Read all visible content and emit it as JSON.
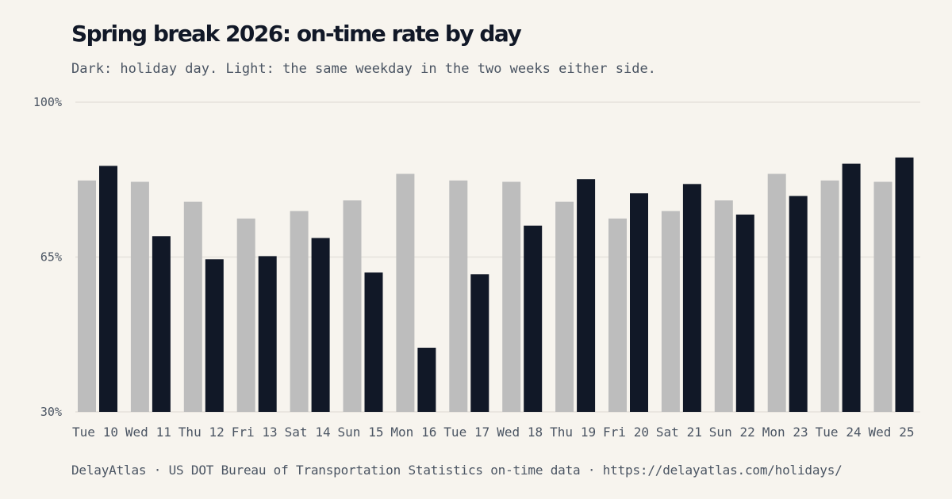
{
  "title": "Spring break 2026: on-time rate by day",
  "subtitle": "Dark: holiday day. Light: the same weekday in the two weeks either side.",
  "source": "DelayAtlas · US DOT Bureau of Transportation Statistics on-time data · https://delayatlas.com/holidays/",
  "colors": {
    "background": "#f7f4ee",
    "holiday": "#111827",
    "baseline": "#bdbdbd",
    "grid": "#e5e2dc",
    "text": "#4b5563",
    "title": "#111827"
  },
  "chart_data": {
    "type": "bar",
    "categories": [
      "Tue 10",
      "Wed 11",
      "Thu 12",
      "Fri 13",
      "Sat 14",
      "Sun 15",
      "Mon 16",
      "Tue 17",
      "Wed 18",
      "Thu 19",
      "Fri 20",
      "Sat 21",
      "Sun 22",
      "Mon 23",
      "Tue 24",
      "Wed 25"
    ],
    "series": [
      {
        "name": "",
        "role": "same weekday, two weeks either side",
        "values": [
          82.3,
          82.0,
          77.5,
          73.7,
          75.4,
          77.8,
          83.8,
          82.3,
          82.0,
          77.5,
          73.7,
          75.4,
          77.8,
          83.8,
          82.3,
          82.0
        ]
      },
      {
        "name": "",
        "role": "holiday day",
        "values": [
          85.6,
          69.7,
          64.5,
          65.2,
          69.3,
          61.5,
          44.5,
          61.1,
          72.1,
          82.6,
          79.4,
          81.5,
          74.6,
          78.8,
          86.1,
          87.5
        ]
      }
    ],
    "y_ticks": [
      "100%",
      "65%",
      "30%"
    ],
    "ylim": [
      30,
      100
    ],
    "grid": true,
    "legend": "none"
  }
}
